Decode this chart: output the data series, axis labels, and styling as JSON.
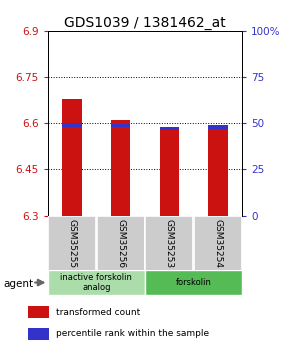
{
  "title": "GDS1039 / 1381462_at",
  "samples": [
    "GSM35255",
    "GSM35256",
    "GSM35253",
    "GSM35254"
  ],
  "red_values": [
    6.68,
    6.61,
    6.585,
    6.59
  ],
  "blue_tops": [
    6.6,
    6.598,
    6.588,
    6.594
  ],
  "blue_bottoms": [
    6.589,
    6.587,
    6.578,
    6.583
  ],
  "y_min": 6.3,
  "y_max": 6.9,
  "y_ticks_left": [
    6.3,
    6.45,
    6.6,
    6.75,
    6.9
  ],
  "y_ticks_right": [
    0,
    25,
    50,
    75,
    100
  ],
  "y_ticks_right_labels": [
    "0",
    "25",
    "50",
    "75",
    "100%"
  ],
  "groups": [
    {
      "label": "inactive forskolin\nanalog",
      "samples": [
        0,
        1
      ],
      "color": "#aaddaa"
    },
    {
      "label": "forskolin",
      "samples": [
        2,
        3
      ],
      "color": "#55bb55"
    }
  ],
  "bar_width": 0.4,
  "red_color": "#cc1111",
  "blue_color": "#3333cc",
  "legend_red": "transformed count",
  "legend_blue": "percentile rank within the sample",
  "agent_label": "agent",
  "title_fontsize": 10,
  "tick_fontsize": 7.5,
  "background_color": "#ffffff"
}
